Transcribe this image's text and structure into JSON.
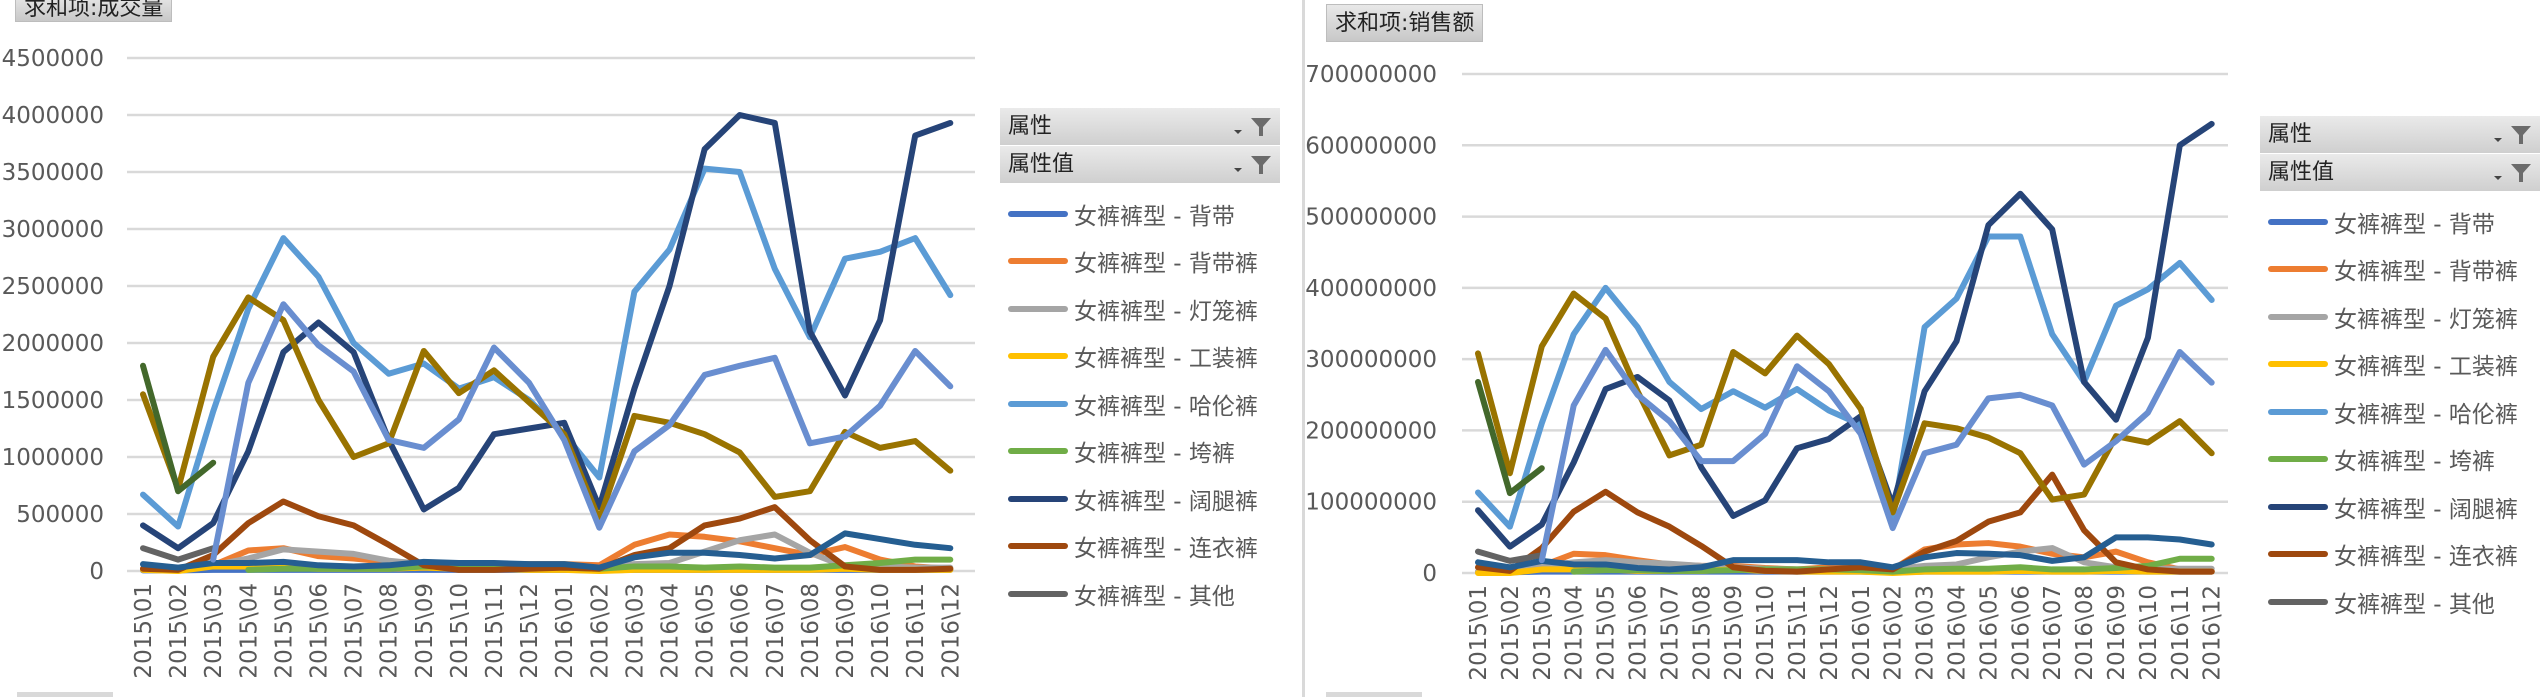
{
  "colors": {
    "gridline": "#d9d9d9",
    "axis_text": "#595959",
    "divider": "#d9d9d9"
  },
  "legend_header": {
    "filter1_label": "属性",
    "filter2_label": "属性值"
  },
  "chart_data": [
    {
      "type": "line",
      "title": "求和项:成交量",
      "xlabel": "",
      "ylabel": "",
      "ylim": [
        0,
        4500000
      ],
      "yticks": [
        0,
        500000,
        1000000,
        1500000,
        2000000,
        2500000,
        3000000,
        3500000,
        4000000,
        4500000
      ],
      "grid": true,
      "legend_position": "right",
      "x": [
        "2015\\01",
        "2015\\02",
        "2015\\03",
        "2015\\04",
        "2015\\05",
        "2015\\06",
        "2015\\07",
        "2015\\08",
        "2015\\09",
        "2015\\10",
        "2015\\11",
        "2015\\12",
        "2016\\01",
        "2016\\02",
        "2016\\03",
        "2016\\04",
        "2016\\05",
        "2016\\06",
        "2016\\07",
        "2016\\08",
        "2016\\09",
        "2016\\10",
        "2016\\11",
        "2016\\12"
      ],
      "series": [
        {
          "name": "女裤裤型 - 背带",
          "color": "#4472C4",
          "in_legend": true,
          "values": [
            5000,
            5000,
            10000,
            10000,
            10000,
            10000,
            10000,
            10000,
            10000,
            10000,
            10000,
            10000,
            10000,
            5000,
            10000,
            10000,
            10000,
            10000,
            10000,
            10000,
            10000,
            10000,
            10000,
            10000
          ]
        },
        {
          "name": "女裤裤型 - 背带裤",
          "color": "#ED7D31",
          "in_legend": true,
          "values": [
            20000,
            20000,
            50000,
            180000,
            200000,
            130000,
            110000,
            80000,
            70000,
            60000,
            60000,
            60000,
            60000,
            50000,
            230000,
            320000,
            300000,
            260000,
            200000,
            140000,
            210000,
            100000,
            40000,
            20000
          ]
        },
        {
          "name": "女裤裤型 - 灯笼裤",
          "color": "#A5A5A5",
          "in_legend": true,
          "values": [
            10000,
            10000,
            50000,
            110000,
            190000,
            170000,
            150000,
            90000,
            60000,
            50000,
            50000,
            40000,
            40000,
            30000,
            60000,
            70000,
            170000,
            270000,
            320000,
            160000,
            40000,
            40000,
            30000,
            30000
          ]
        },
        {
          "name": "女裤裤型 - 工装裤",
          "color": "#FFC000",
          "in_legend": true,
          "values": [
            10000,
            0,
            40000,
            40000,
            30000,
            20000,
            20000,
            20000,
            30000,
            20000,
            20000,
            10000,
            10000,
            0,
            10000,
            10000,
            10000,
            10000,
            10000,
            10000,
            20000,
            10000,
            10000,
            10000
          ]
        },
        {
          "name": "女裤裤型 - 哈伦裤",
          "color": "#5B9BD5",
          "in_legend": true,
          "values": [
            670000,
            390000,
            1400000,
            2300000,
            2920000,
            2580000,
            2000000,
            1730000,
            1820000,
            1600000,
            1700000,
            1500000,
            1200000,
            820000,
            2450000,
            2820000,
            3530000,
            3500000,
            2650000,
            2050000,
            2740000,
            2800000,
            2920000,
            2420000
          ]
        },
        {
          "name": "女裤裤型 - 垮裤",
          "color": "#70AD47",
          "in_legend": true,
          "values": [
            null,
            null,
            null,
            10000,
            20000,
            20000,
            20000,
            20000,
            40000,
            40000,
            40000,
            40000,
            30000,
            20000,
            40000,
            40000,
            30000,
            40000,
            30000,
            30000,
            50000,
            70000,
            100000,
            100000
          ]
        },
        {
          "name": "女裤裤型 - 阔腿裤",
          "color": "#264478",
          "in_legend": true,
          "values": [
            400000,
            200000,
            420000,
            1050000,
            1920000,
            2180000,
            1920000,
            1150000,
            540000,
            730000,
            1200000,
            1250000,
            1300000,
            560000,
            1600000,
            2500000,
            3700000,
            4000000,
            3930000,
            2100000,
            1540000,
            2200000,
            3820000,
            3930000
          ]
        },
        {
          "name": "女裤裤型 - 连衣裤",
          "color": "#9E480E",
          "in_legend": true,
          "values": [
            20000,
            10000,
            140000,
            420000,
            610000,
            480000,
            400000,
            230000,
            50000,
            10000,
            10000,
            20000,
            30000,
            20000,
            140000,
            200000,
            400000,
            460000,
            560000,
            270000,
            40000,
            10000,
            10000,
            20000
          ]
        },
        {
          "name": "女裤裤型 - 其他",
          "color": "#636363",
          "in_legend": true,
          "values": [
            200000,
            100000,
            200000,
            null,
            null,
            null,
            null,
            null,
            null,
            null,
            null,
            null,
            null,
            null,
            null,
            null,
            null,
            null,
            null,
            null,
            null,
            null,
            null,
            null
          ]
        },
        {
          "name": "",
          "color": "#997300",
          "in_legend": false,
          "values": [
            1550000,
            720000,
            1880000,
            2400000,
            2200000,
            1500000,
            1000000,
            1120000,
            1930000,
            1560000,
            1760000,
            1480000,
            1200000,
            450000,
            1360000,
            1300000,
            1200000,
            1040000,
            650000,
            700000,
            1220000,
            1080000,
            1140000,
            880000
          ]
        },
        {
          "name": "",
          "color": "#255E91",
          "in_legend": false,
          "values": [
            60000,
            30000,
            70000,
            70000,
            80000,
            50000,
            40000,
            50000,
            80000,
            70000,
            70000,
            60000,
            60000,
            30000,
            120000,
            160000,
            160000,
            140000,
            110000,
            140000,
            330000,
            280000,
            230000,
            200000
          ]
        },
        {
          "name": "",
          "color": "#43682B",
          "in_legend": false,
          "values": [
            1800000,
            700000,
            950000,
            null,
            null,
            null,
            null,
            null,
            null,
            null,
            null,
            null,
            null,
            null,
            null,
            null,
            null,
            null,
            null,
            null,
            null,
            null,
            null,
            null
          ]
        },
        {
          "name": "",
          "color": "#698ED0",
          "in_legend": false,
          "values": [
            null,
            null,
            100000,
            1650000,
            2340000,
            1980000,
            1750000,
            1150000,
            1080000,
            1330000,
            1960000,
            1650000,
            1150000,
            380000,
            1050000,
            1280000,
            1720000,
            1800000,
            1870000,
            1120000,
            1180000,
            1450000,
            1930000,
            1620000
          ]
        }
      ]
    },
    {
      "type": "line",
      "title": "求和项:销售额",
      "xlabel": "",
      "ylabel": "",
      "ylim": [
        0,
        700000000
      ],
      "yticks": [
        0,
        100000000,
        200000000,
        300000000,
        400000000,
        500000000,
        600000000,
        700000000
      ],
      "grid": true,
      "legend_position": "right",
      "x": [
        "2015\\01",
        "2015\\02",
        "2015\\03",
        "2015\\04",
        "2015\\05",
        "2015\\06",
        "2015\\07",
        "2015\\08",
        "2015\\09",
        "2015\\10",
        "2015\\11",
        "2015\\12",
        "2016\\01",
        "2016\\02",
        "2016\\03",
        "2016\\04",
        "2016\\05",
        "2016\\06",
        "2016\\07",
        "2016\\08",
        "2016\\09",
        "2016\\10",
        "2016\\11",
        "2016\\12"
      ],
      "series": [
        {
          "name": "女裤裤型 - 背带",
          "color": "#4472C4",
          "in_legend": true,
          "values": [
            1000000,
            1000000,
            2000000,
            2000000,
            2000000,
            2000000,
            2000000,
            2000000,
            2000000,
            2000000,
            2000000,
            2000000,
            2000000,
            1000000,
            2000000,
            2000000,
            2000000,
            2000000,
            2000000,
            2000000,
            2000000,
            2000000,
            2000000,
            2000000
          ]
        },
        {
          "name": "女裤裤型 - 背带裤",
          "color": "#ED7D31",
          "in_legend": true,
          "values": [
            2000000,
            2000000,
            10000000,
            27000000,
            25000000,
            18000000,
            12000000,
            10000000,
            10000000,
            7000000,
            5000000,
            8000000,
            10000000,
            5000000,
            33000000,
            40000000,
            42000000,
            37000000,
            27000000,
            22000000,
            30000000,
            15000000,
            5000000,
            3000000
          ]
        },
        {
          "name": "女裤裤型 - 灯笼裤",
          "color": "#A5A5A5",
          "in_legend": true,
          "values": [
            2000000,
            2000000,
            10000000,
            15000000,
            18000000,
            15000000,
            13000000,
            10000000,
            8000000,
            6000000,
            5000000,
            5000000,
            5000000,
            5000000,
            10000000,
            12000000,
            22000000,
            30000000,
            35000000,
            15000000,
            8000000,
            6000000,
            6000000,
            6000000
          ]
        },
        {
          "name": "女裤裤型 - 工装裤",
          "color": "#FFC000",
          "in_legend": true,
          "values": [
            0,
            0,
            5000000,
            5000000,
            5000000,
            3000000,
            3000000,
            3000000,
            5000000,
            3000000,
            2000000,
            2000000,
            2000000,
            0,
            2000000,
            2000000,
            2000000,
            3000000,
            2000000,
            2000000,
            3000000,
            2000000,
            2000000,
            2000000
          ]
        },
        {
          "name": "女裤裤型 - 哈伦裤",
          "color": "#5B9BD5",
          "in_legend": true,
          "values": [
            113000000,
            65000000,
            210000000,
            335000000,
            400000000,
            345000000,
            268000000,
            230000000,
            255000000,
            232000000,
            258000000,
            228000000,
            208000000,
            75000000,
            345000000,
            385000000,
            472000000,
            472000000,
            335000000,
            268000000,
            375000000,
            398000000,
            435000000,
            383000000
          ]
        },
        {
          "name": "女裤裤型 - 垮裤",
          "color": "#70AD47",
          "in_legend": true,
          "values": [
            null,
            null,
            null,
            2000000,
            4000000,
            4000000,
            3000000,
            3000000,
            4000000,
            5000000,
            5000000,
            5000000,
            4000000,
            2000000,
            5000000,
            6000000,
            6000000,
            8000000,
            5000000,
            5000000,
            7000000,
            10000000,
            20000000,
            20000000
          ]
        },
        {
          "name": "女裤裤型 - 阔腿裤",
          "color": "#264478",
          "in_legend": true,
          "values": [
            88000000,
            37000000,
            68000000,
            155000000,
            258000000,
            275000000,
            242000000,
            148000000,
            80000000,
            102000000,
            175000000,
            188000000,
            220000000,
            95000000,
            255000000,
            325000000,
            488000000,
            532000000,
            482000000,
            268000000,
            215000000,
            330000000,
            600000000,
            630000000
          ]
        },
        {
          "name": "女裤裤型 - 连衣裤",
          "color": "#9E480E",
          "in_legend": true,
          "values": [
            8000000,
            3000000,
            35000000,
            86000000,
            114000000,
            85000000,
            65000000,
            38000000,
            8000000,
            3000000,
            2000000,
            5000000,
            8000000,
            5000000,
            30000000,
            45000000,
            72000000,
            85000000,
            138000000,
            60000000,
            15000000,
            5000000,
            2000000,
            2000000
          ]
        },
        {
          "name": "女裤裤型 - 其他",
          "color": "#636363",
          "in_legend": true,
          "values": [
            30000000,
            17000000,
            25000000,
            null,
            null,
            null,
            null,
            null,
            null,
            null,
            null,
            null,
            null,
            null,
            null,
            null,
            null,
            null,
            null,
            null,
            null,
            null,
            null,
            null
          ]
        },
        {
          "name": "",
          "color": "#997300",
          "in_legend": false,
          "values": [
            308000000,
            140000000,
            318000000,
            392000000,
            357000000,
            255000000,
            165000000,
            180000000,
            310000000,
            280000000,
            333000000,
            293000000,
            230000000,
            85000000,
            210000000,
            203000000,
            190000000,
            168000000,
            103000000,
            110000000,
            192000000,
            183000000,
            213000000,
            168000000
          ]
        },
        {
          "name": "",
          "color": "#255E91",
          "in_legend": false,
          "values": [
            15000000,
            8000000,
            17000000,
            12000000,
            12000000,
            7000000,
            5000000,
            8000000,
            18000000,
            18000000,
            18000000,
            15000000,
            15000000,
            8000000,
            22000000,
            28000000,
            27000000,
            25000000,
            17000000,
            22000000,
            50000000,
            50000000,
            47000000,
            40000000
          ]
        },
        {
          "name": "",
          "color": "#43682B",
          "in_legend": false,
          "values": [
            268000000,
            112000000,
            147000000,
            null,
            null,
            null,
            null,
            null,
            null,
            null,
            null,
            null,
            null,
            null,
            null,
            null,
            null,
            null,
            null,
            null,
            null,
            null,
            null,
            null
          ]
        },
        {
          "name": "",
          "color": "#698ED0",
          "in_legend": false,
          "values": [
            null,
            null,
            18000000,
            235000000,
            313000000,
            250000000,
            213000000,
            157000000,
            157000000,
            195000000,
            290000000,
            255000000,
            195000000,
            63000000,
            168000000,
            180000000,
            245000000,
            250000000,
            235000000,
            152000000,
            185000000,
            225000000,
            310000000,
            267000000
          ]
        }
      ]
    }
  ]
}
